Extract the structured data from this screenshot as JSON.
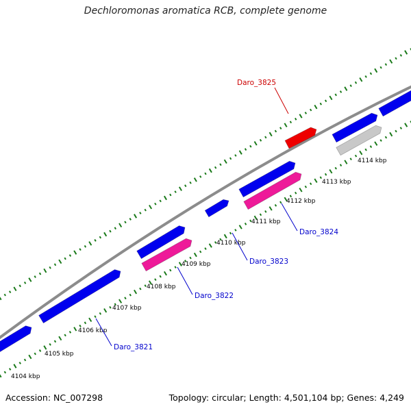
{
  "title": "Dechloromonas aromatica RCB, complete genome",
  "footer": {
    "accession": "Accession: NC_007298",
    "summary": "Topology: circular; Length: 4,501,104 bp; Genes: 4,249"
  },
  "colors": {
    "backbone": "#8c8c8c",
    "gene_blue": "#0000ee",
    "gene_pink": "#ee1a99",
    "gene_red": "#ee0000",
    "gene_grey": "#c8c8c8",
    "ticks": "#1a7a1a",
    "label_blue": "#0000cc",
    "label_red": "#cc0000"
  },
  "ticks": [
    {
      "label": "4104 kbp"
    },
    {
      "label": "4105 kbp"
    },
    {
      "label": "4106 kbp"
    },
    {
      "label": "4107 kbp"
    },
    {
      "label": "4108 kbp"
    },
    {
      "label": "4109 kbp"
    },
    {
      "label": "4110 kbp"
    },
    {
      "label": "4111 kbp"
    },
    {
      "label": "4112 kbp"
    },
    {
      "label": "4113 kbp"
    },
    {
      "label": "4114 kbp"
    }
  ],
  "gene_labels": [
    {
      "name": "Daro_3821",
      "color": "label_blue"
    },
    {
      "name": "Daro_3822",
      "color": "label_blue"
    },
    {
      "name": "Daro_3823",
      "color": "label_blue"
    },
    {
      "name": "Daro_3824",
      "color": "label_blue"
    },
    {
      "name": "Daro_3825",
      "color": "label_red"
    }
  ]
}
